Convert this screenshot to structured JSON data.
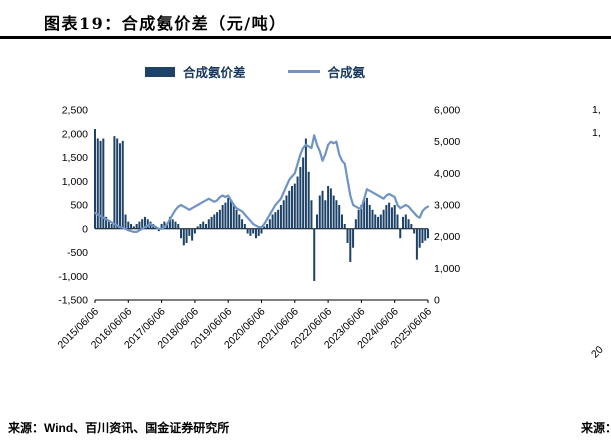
{
  "header": {
    "title": "图表19：合成氨价差（元/吨）"
  },
  "footer": {
    "source": "来源：Wind、百川资讯、国金证券研究所",
    "source_right_fragment": "来源："
  },
  "right_edge": {
    "axis_label_fragment_1": "1,",
    "axis_label_fragment_2": "1,",
    "x_tick_fragment": "20"
  },
  "chart_data": {
    "type": "combo",
    "title": "合成氨价差（元/吨）",
    "grid": false,
    "legend_position": "top",
    "x_start": "2015-06",
    "x_step": "monthly",
    "x_tick_labels": [
      "2015/06/06",
      "2016/06/06",
      "2017/06/06",
      "2018/06/06",
      "2019/06/06",
      "2020/06/06",
      "2021/06/06",
      "2022/06/06",
      "2023/06/06",
      "2024/06/06",
      "2025/06/06"
    ],
    "left_axis": {
      "min": -1500,
      "max": 2500,
      "tick_step": 500,
      "tick_labels": [
        "2,500",
        "2,000",
        "1,500",
        "1,000",
        "500",
        "0",
        "-500",
        "-1,000",
        "-1,500"
      ]
    },
    "right_axis": {
      "min": 0,
      "max": 6000,
      "tick_step": 1000,
      "tick_labels": [
        "6,000",
        "5,000",
        "4,000",
        "3,000",
        "2,000",
        "1,000",
        "0"
      ]
    },
    "series": [
      {
        "name": "合成氨价差",
        "type": "bar",
        "axis": "left",
        "color": "#1d4268",
        "values": [
          2100,
          1900,
          1850,
          1900,
          250,
          150,
          100,
          1950,
          1900,
          1800,
          1850,
          300,
          150,
          100,
          50,
          100,
          150,
          200,
          250,
          200,
          150,
          100,
          50,
          -50,
          100,
          150,
          100,
          250,
          200,
          150,
          100,
          -200,
          -350,
          -300,
          -150,
          -250,
          -100,
          50,
          100,
          150,
          100,
          200,
          250,
          300,
          350,
          400,
          500,
          550,
          650,
          600,
          500,
          400,
          300,
          200,
          100,
          -100,
          -150,
          -100,
          -200,
          -150,
          -100,
          50,
          100,
          200,
          300,
          350,
          400,
          500,
          600,
          700,
          800,
          900,
          950,
          1100,
          1300,
          1500,
          1900,
          1200,
          600,
          -1100,
          300,
          700,
          800,
          600,
          900,
          850,
          700,
          600,
          500,
          300,
          100,
          -300,
          -700,
          -400,
          200,
          400,
          500,
          600,
          650,
          500,
          400,
          300,
          250,
          300,
          400,
          500,
          550,
          450,
          500,
          300,
          -200,
          250,
          300,
          200,
          100,
          -100,
          -650,
          -400,
          -300,
          -250,
          -200
        ]
      },
      {
        "name": "合成氨",
        "type": "line",
        "axis": "right",
        "color": "#6f94c4",
        "values": [
          2750,
          2700,
          2650,
          2600,
          2550,
          2500,
          2450,
          2400,
          2350,
          2300,
          2280,
          2250,
          2200,
          2180,
          2150,
          2150,
          2200,
          2250,
          2300,
          2350,
          2400,
          2350,
          2300,
          2250,
          2250,
          2300,
          2400,
          2550,
          2700,
          2850,
          2950,
          3000,
          2950,
          2900,
          2850,
          2900,
          2950,
          3000,
          3050,
          3100,
          3150,
          3200,
          3150,
          3100,
          3150,
          3250,
          3300,
          3250,
          3300,
          3150,
          3000,
          2900,
          2850,
          2800,
          2700,
          2600,
          2500,
          2400,
          2350,
          2300,
          2300,
          2400,
          2550,
          2700,
          2850,
          3000,
          3100,
          3200,
          3400,
          3600,
          3800,
          3900,
          4000,
          4300,
          4600,
          4800,
          4900,
          4850,
          4800,
          5200,
          4900,
          4700,
          4400,
          4600,
          4900,
          5000,
          4950,
          5000,
          4600,
          4400,
          4300,
          3800,
          3300,
          3000,
          2950,
          2900,
          2900,
          3200,
          3500,
          3450,
          3400,
          3350,
          3300,
          3250,
          3200,
          3300,
          3350,
          3300,
          3250,
          3000,
          2900,
          2950,
          3000,
          2950,
          2850,
          2750,
          2650,
          2600,
          2800,
          2900,
          2950
        ]
      }
    ]
  }
}
